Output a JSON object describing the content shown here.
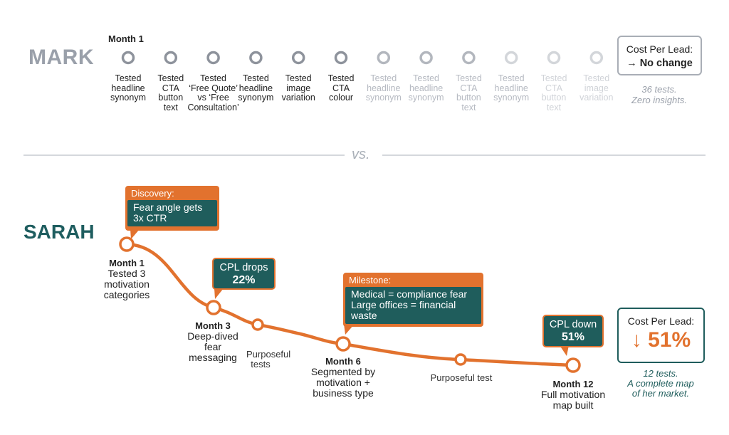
{
  "mark": {
    "name": "MARK",
    "month_label": "Month 1",
    "steps": [
      {
        "label": "Tested\nheadline\nsynonym",
        "faded": false
      },
      {
        "label": "Tested\nCTA\nbutton\ntext",
        "faded": false
      },
      {
        "label": "Tested\n‘Free Quote’\nvs ‘Free\nConsultation’",
        "faded": false
      },
      {
        "label": "Tested\nheadline\nsynonym",
        "faded": false
      },
      {
        "label": "Tested\nimage\nvariation",
        "faded": false
      },
      {
        "label": "Tested\nCTA\ncolour",
        "faded": false
      },
      {
        "label": "Tested\nheadline\nsynonym",
        "faded": true
      },
      {
        "label": "Tested\nheadline\nsynonym",
        "faded": true
      },
      {
        "label": "Tested\nCTA\nbutton\ntext",
        "faded": true
      },
      {
        "label": "Tested\nheadline\nsynonym",
        "faded": true
      },
      {
        "label": "Tested\nCTA\nbutton\ntext",
        "faded": true
      },
      {
        "label": "Tested\nimage\nvariation",
        "faded": true
      }
    ],
    "result": {
      "title": "Cost Per Lead:",
      "value": "→ No change"
    },
    "note_line1": "36 tests.",
    "note_line2": "Zero insights."
  },
  "divider_label": "vs.",
  "sarah": {
    "name": "SARAH",
    "milestones": [
      {
        "title": "Month 1",
        "text": "Tested 3\nmotivation\ncategories"
      },
      {
        "title": "Month 3",
        "text": "Deep-dived\nfear\nmessaging"
      },
      {
        "title": "",
        "text": "Purposeful\ntests"
      },
      {
        "title": "Month 6",
        "text": "Segmented by\nmotivation +\nbusiness type"
      },
      {
        "title": "",
        "text": "Purposeful test"
      },
      {
        "title": "Month 12",
        "text": "Full motivation\nmap built"
      }
    ],
    "callouts": {
      "discovery": {
        "head": "Discovery:",
        "body": "Fear angle gets\n3x CTR"
      },
      "cpl_drop": {
        "line1": "CPL drops",
        "line2": "22%"
      },
      "milestone": {
        "head": "Milestone:",
        "body": "Medical = compliance fear\nLarge offices = financial\nwaste"
      },
      "cpl_down": {
        "line1": "CPL down",
        "line2": "51%"
      }
    },
    "result": {
      "title": "Cost Per Lead:",
      "value": "↓ 51%"
    },
    "note_line1": "12 tests.",
    "note_line2": "A complete map",
    "note_line3": "of her market."
  },
  "colors": {
    "orange": "#e2722e",
    "teal": "#1f5d5c",
    "gray": "#9aa0aa"
  }
}
